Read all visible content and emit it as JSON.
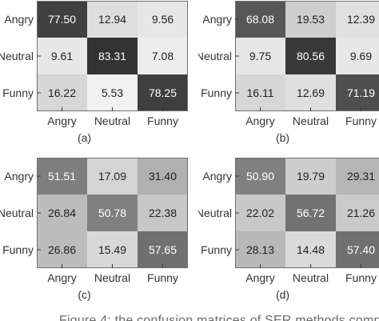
{
  "chart_data": [
    {
      "type": "heatmap",
      "label": "(a)",
      "rows": [
        "Angry",
        "Neutral",
        "Funny"
      ],
      "cols": [
        "Angry",
        "Neutral",
        "Funny"
      ],
      "values": [
        [
          77.5,
          12.94,
          9.56
        ],
        [
          9.61,
          83.31,
          7.08
        ],
        [
          16.22,
          5.53,
          78.25
        ]
      ],
      "value_labels": [
        [
          "77.50",
          "12.94",
          "9.56"
        ],
        [
          "9.61",
          "83.31",
          "7.08"
        ],
        [
          "16.22",
          "5.53",
          "78.25"
        ]
      ]
    },
    {
      "type": "heatmap",
      "label": "(b)",
      "rows": [
        "Angry",
        "Neutral",
        "Funny"
      ],
      "cols": [
        "Angry",
        "Neutral",
        "Funny"
      ],
      "values": [
        [
          68.08,
          19.53,
          12.39
        ],
        [
          9.75,
          80.56,
          9.69
        ],
        [
          16.11,
          12.69,
          71.19
        ]
      ],
      "value_labels": [
        [
          "68.08",
          "19.53",
          "12.39"
        ],
        [
          "9.75",
          "80.56",
          "9.69"
        ],
        [
          "16.11",
          "12.69",
          "71.19"
        ]
      ]
    },
    {
      "type": "heatmap",
      "label": "(c)",
      "rows": [
        "Angry",
        "Neutral",
        "Funny"
      ],
      "cols": [
        "Angry",
        "Neutral",
        "Funny"
      ],
      "values": [
        [
          51.51,
          17.09,
          31.4
        ],
        [
          26.84,
          50.78,
          22.38
        ],
        [
          26.86,
          15.49,
          57.65
        ]
      ],
      "value_labels": [
        [
          "51.51",
          "17.09",
          "31.40"
        ],
        [
          "26.84",
          "50.78",
          "22.38"
        ],
        [
          "26.86",
          "15.49",
          "57.65"
        ]
      ]
    },
    {
      "type": "heatmap",
      "label": "(d)",
      "rows": [
        "Angry",
        "Neutral",
        "Funny"
      ],
      "cols": [
        "Angry",
        "Neutral",
        "Funny"
      ],
      "values": [
        [
          50.9,
          19.79,
          29.31
        ],
        [
          22.02,
          56.72,
          21.26
        ],
        [
          28.13,
          14.48,
          57.4
        ]
      ],
      "value_labels": [
        [
          "50.90",
          "19.79",
          "29.31"
        ],
        [
          "22.02",
          "56.72",
          "21.26"
        ],
        [
          "28.13",
          "14.48",
          "57.40"
        ]
      ]
    }
  ]
}
